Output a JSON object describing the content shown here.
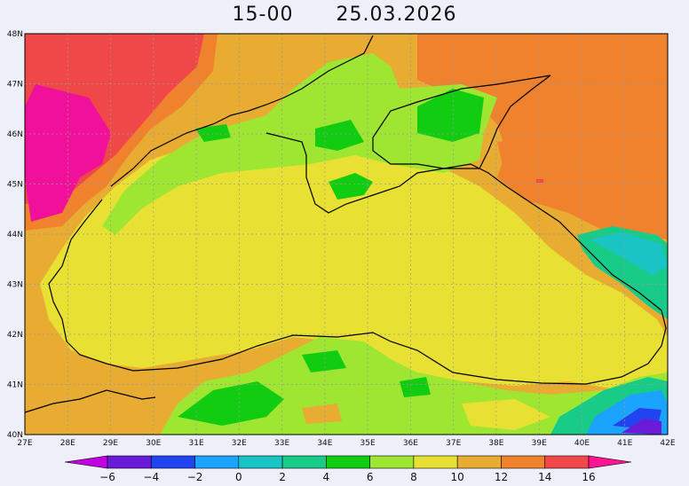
{
  "header": {
    "time": "15-00",
    "date": "25.03.2026"
  },
  "map": {
    "lat_labels": [
      "48N",
      "47N",
      "46N",
      "45N",
      "44N",
      "43N",
      "42N",
      "41N",
      "40N"
    ],
    "lon_labels": [
      "27E",
      "28E",
      "29E",
      "30E",
      "31E",
      "32E",
      "33E",
      "34E",
      "35E",
      "36E",
      "37E",
      "38E",
      "39E",
      "40E",
      "41E",
      "42E"
    ]
  },
  "legend": {
    "ticks": [
      "-6",
      "-4",
      "-2",
      "0",
      "2",
      "4",
      "6",
      "8",
      "10",
      "12",
      "14",
      "16"
    ],
    "colors": [
      "#9a00d8",
      "#6a1ad8",
      "#2244f0",
      "#1aa3ff",
      "#18c4c4",
      "#18cc88",
      "#12cc12",
      "#9ee632",
      "#e8e032",
      "#e8ac32",
      "#f0822e",
      "#f04848"
    ],
    "under_color": "#c000e0",
    "over_color": "#ff1493"
  },
  "colors": {
    "c6": "#9ee632",
    "c4": "#12cc12",
    "c8": "#e8e032",
    "c10": "#e8ac32",
    "c12": "#f0822e",
    "c14": "#f04848",
    "c16": "#f0109a",
    "c0": "#18c4c4",
    "cm2": "#1aa3ff",
    "cm4": "#2244f0"
  }
}
